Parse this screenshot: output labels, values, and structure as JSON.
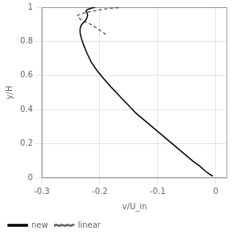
{
  "chart_data": {
    "type": "line",
    "xlabel": "v/U_in",
    "ylabel": "y/H",
    "xlim": [
      -0.3,
      0.02
    ],
    "ylim": [
      0,
      1.0
    ],
    "xticks": [
      -0.3,
      -0.2,
      -0.1,
      0.0
    ],
    "yticks": [
      0,
      0.2,
      0.4,
      0.6,
      0.8,
      1.0
    ],
    "grid": true,
    "legend": "lower left",
    "series": [
      {
        "name": "new",
        "color": "#000000",
        "line_style": "solid",
        "x": [
          -0.005,
          -0.01,
          -0.018,
          -0.028,
          -0.04,
          -0.054,
          -0.068,
          -0.082,
          -0.096,
          -0.11,
          -0.124,
          -0.138,
          -0.152,
          -0.166,
          -0.18,
          -0.193,
          -0.205,
          -0.215,
          -0.222,
          -0.228,
          -0.232,
          -0.234,
          -0.234,
          -0.232,
          -0.228,
          -0.224,
          -0.222,
          -0.221,
          -0.222,
          -0.224,
          -0.222,
          -0.218,
          -0.213,
          -0.208
        ],
        "values": [
          0.01,
          0.02,
          0.04,
          0.07,
          0.1,
          0.14,
          0.18,
          0.22,
          0.26,
          0.3,
          0.34,
          0.38,
          0.43,
          0.48,
          0.53,
          0.58,
          0.63,
          0.68,
          0.73,
          0.78,
          0.82,
          0.85,
          0.875,
          0.895,
          0.91,
          0.925,
          0.94,
          0.955,
          0.967,
          0.977,
          0.985,
          0.991,
          0.996,
          0.999
        ]
      },
      {
        "name": "linear",
        "color": "#666666",
        "line_style": "dashed",
        "x": [
          -0.19,
          -0.195,
          -0.2,
          -0.205,
          -0.21,
          -0.215,
          -0.22,
          -0.225,
          -0.23,
          -0.235,
          -0.238,
          -0.238,
          -0.236,
          -0.233,
          -0.229,
          -0.225,
          -0.22,
          -0.215,
          -0.21,
          -0.205,
          -0.2,
          -0.195,
          -0.19,
          -0.185,
          -0.18,
          -0.175,
          -0.17,
          -0.165
        ],
        "values": [
          0.84,
          0.855,
          0.865,
          0.878,
          0.888,
          0.898,
          0.907,
          0.915,
          0.923,
          0.933,
          0.943,
          0.952,
          0.957,
          0.961,
          0.965,
          0.968,
          0.972,
          0.976,
          0.979,
          0.982,
          0.985,
          0.988,
          0.99,
          0.992,
          0.994,
          0.996,
          0.997,
          0.999
        ]
      }
    ]
  }
}
